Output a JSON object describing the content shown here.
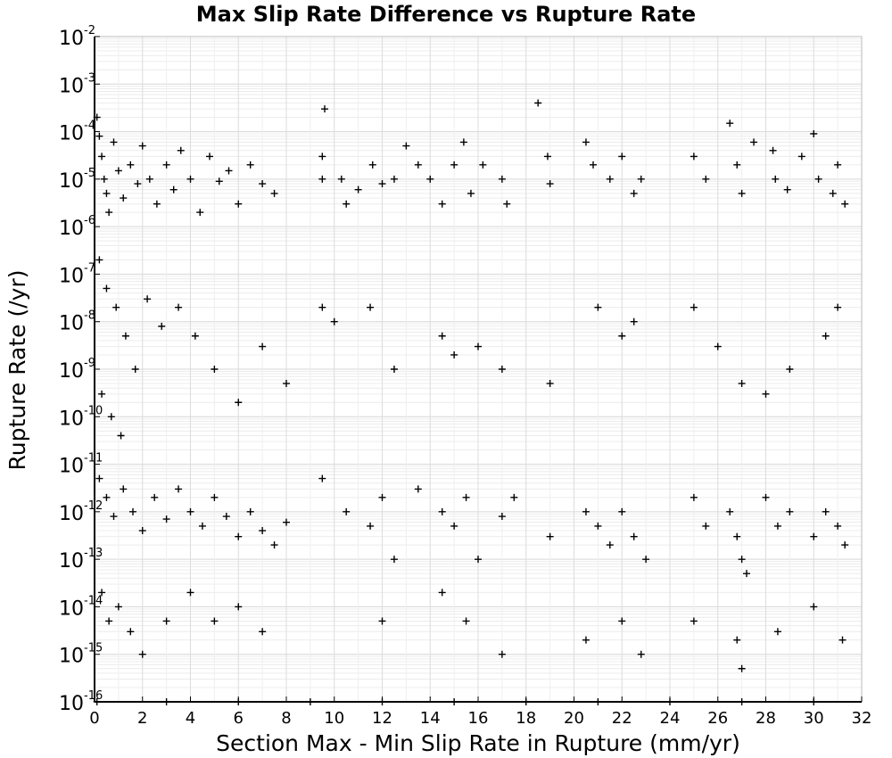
{
  "chart_data": {
    "type": "scatter",
    "title": "Max Slip Rate Difference vs Rupture Rate",
    "xlabel": "Section Max - Min Slip Rate in Rupture (mm/yr)",
    "ylabel": "Rupture Rate (/yr)",
    "xlim": [
      0,
      32
    ],
    "ylim": [
      1e-16,
      0.01
    ],
    "yscale": "log",
    "grid": true,
    "legend": "none",
    "marker": "+",
    "marker_color": "#000000",
    "x_ticks": [
      "0",
      "2",
      "4",
      "6",
      "8",
      "10",
      "12",
      "14",
      "16",
      "18",
      "20",
      "22",
      "24",
      "26",
      "28",
      "30",
      "32"
    ],
    "y_ticks": [
      {
        "base": "10",
        "exp": "-16"
      },
      {
        "base": "10",
        "exp": "-15"
      },
      {
        "base": "10",
        "exp": "-14"
      },
      {
        "base": "10",
        "exp": "-13"
      },
      {
        "base": "10",
        "exp": "-12"
      },
      {
        "base": "10",
        "exp": "-11"
      },
      {
        "base": "10",
        "exp": "-10"
      },
      {
        "base": "10",
        "exp": "-9"
      },
      {
        "base": "10",
        "exp": "-8"
      },
      {
        "base": "10",
        "exp": "-7"
      },
      {
        "base": "10",
        "exp": "-6"
      },
      {
        "base": "10",
        "exp": "-5"
      },
      {
        "base": "10",
        "exp": "-4"
      },
      {
        "base": "10",
        "exp": "-3"
      },
      {
        "base": "10",
        "exp": "-2"
      }
    ],
    "series": [
      {
        "points": [
          [
            0.1,
            0.0002
          ],
          [
            0.2,
            8e-05
          ],
          [
            0.3,
            3e-05
          ],
          [
            0.4,
            1e-05
          ],
          [
            0.5,
            5e-06
          ],
          [
            0.6,
            2e-06
          ],
          [
            0.8,
            6e-05
          ],
          [
            1.0,
            1.5e-05
          ],
          [
            1.2,
            4e-06
          ],
          [
            1.5,
            2e-05
          ],
          [
            1.8,
            8e-06
          ],
          [
            2.0,
            5e-05
          ],
          [
            2.3,
            1e-05
          ],
          [
            2.6,
            3e-06
          ],
          [
            3.0,
            2e-05
          ],
          [
            3.3,
            6e-06
          ],
          [
            3.6,
            4e-05
          ],
          [
            4.0,
            1e-05
          ],
          [
            4.4,
            2e-06
          ],
          [
            4.8,
            3e-05
          ],
          [
            5.2,
            9e-06
          ],
          [
            5.6,
            1.5e-05
          ],
          [
            6.0,
            3e-06
          ],
          [
            6.5,
            2e-05
          ],
          [
            7.0,
            8e-06
          ],
          [
            7.5,
            5e-06
          ],
          [
            0.2,
            2e-07
          ],
          [
            0.5,
            5e-08
          ],
          [
            0.9,
            2e-08
          ],
          [
            1.3,
            5e-09
          ],
          [
            1.7,
            1e-09
          ],
          [
            2.2,
            3e-08
          ],
          [
            2.8,
            8e-09
          ],
          [
            3.5,
            2e-08
          ],
          [
            4.2,
            5e-09
          ],
          [
            5.0,
            1e-09
          ],
          [
            6.0,
            2e-10
          ],
          [
            7.0,
            3e-09
          ],
          [
            8.0,
            5e-10
          ],
          [
            0.3,
            3e-10
          ],
          [
            0.7,
            1e-10
          ],
          [
            1.1,
            4e-11
          ],
          [
            9.5,
            3e-05
          ],
          [
            9.5,
            1e-05
          ],
          [
            9.6,
            0.0003
          ],
          [
            10.3,
            1e-05
          ],
          [
            10.5,
            3e-06
          ],
          [
            11.0,
            6e-06
          ],
          [
            11.6,
            2e-05
          ],
          [
            12.0,
            8e-06
          ],
          [
            12.5,
            1e-05
          ],
          [
            13.0,
            5e-05
          ],
          [
            13.5,
            2e-05
          ],
          [
            14.0,
            1e-05
          ],
          [
            14.5,
            3e-06
          ],
          [
            15.0,
            2e-05
          ],
          [
            15.4,
            6e-05
          ],
          [
            15.7,
            5e-06
          ],
          [
            16.2,
            2e-05
          ],
          [
            17.0,
            1e-05
          ],
          [
            17.2,
            3e-06
          ],
          [
            18.5,
            0.0004
          ],
          [
            18.9,
            3e-05
          ],
          [
            19.0,
            8e-06
          ],
          [
            20.5,
            6e-05
          ],
          [
            20.8,
            2e-05
          ],
          [
            21.5,
            1e-05
          ],
          [
            22.0,
            3e-05
          ],
          [
            22.5,
            5e-06
          ],
          [
            22.8,
            1e-05
          ],
          [
            25.0,
            3e-05
          ],
          [
            25.5,
            1e-05
          ],
          [
            26.5,
            0.00015
          ],
          [
            26.8,
            2e-05
          ],
          [
            27.0,
            5e-06
          ],
          [
            27.5,
            6e-05
          ],
          [
            28.3,
            4e-05
          ],
          [
            28.4,
            1e-05
          ],
          [
            28.9,
            6e-06
          ],
          [
            29.5,
            3e-05
          ],
          [
            30.0,
            9e-05
          ],
          [
            30.2,
            1e-05
          ],
          [
            30.8,
            5e-06
          ],
          [
            31.0,
            2e-05
          ],
          [
            31.3,
            3e-06
          ],
          [
            9.5,
            2e-08
          ],
          [
            10.0,
            1e-08
          ],
          [
            11.5,
            2e-08
          ],
          [
            12.5,
            1e-09
          ],
          [
            14.5,
            5e-09
          ],
          [
            15.0,
            2e-09
          ],
          [
            16.0,
            3e-09
          ],
          [
            17.0,
            1e-09
          ],
          [
            19.0,
            5e-10
          ],
          [
            21.0,
            2e-08
          ],
          [
            22.0,
            5e-09
          ],
          [
            22.5,
            1e-08
          ],
          [
            25.0,
            2e-08
          ],
          [
            26.0,
            3e-09
          ],
          [
            27.0,
            5e-10
          ],
          [
            28.0,
            3e-10
          ],
          [
            29.0,
            1e-09
          ],
          [
            30.5,
            5e-09
          ],
          [
            31.0,
            2e-08
          ],
          [
            0.2,
            5e-12
          ],
          [
            0.5,
            2e-12
          ],
          [
            0.8,
            8e-13
          ],
          [
            1.2,
            3e-12
          ],
          [
            1.6,
            1e-12
          ],
          [
            2.0,
            4e-13
          ],
          [
            2.5,
            2e-12
          ],
          [
            3.0,
            7e-13
          ],
          [
            3.5,
            3e-12
          ],
          [
            4.0,
            1e-12
          ],
          [
            4.5,
            5e-13
          ],
          [
            5.0,
            2e-12
          ],
          [
            5.5,
            8e-13
          ],
          [
            6.0,
            3e-13
          ],
          [
            6.5,
            1e-12
          ],
          [
            7.0,
            4e-13
          ],
          [
            7.5,
            2e-13
          ],
          [
            8.0,
            6e-13
          ],
          [
            0.3,
            2e-14
          ],
          [
            0.6,
            5e-15
          ],
          [
            1.0,
            1e-14
          ],
          [
            1.5,
            3e-15
          ],
          [
            2.0,
            1e-15
          ],
          [
            3.0,
            5e-15
          ],
          [
            4.0,
            2e-14
          ],
          [
            5.0,
            5e-15
          ],
          [
            6.0,
            1e-14
          ],
          [
            7.0,
            3e-15
          ],
          [
            9.5,
            5e-12
          ],
          [
            10.5,
            1e-12
          ],
          [
            11.5,
            5e-13
          ],
          [
            12.0,
            2e-12
          ],
          [
            12.5,
            1e-13
          ],
          [
            13.5,
            3e-12
          ],
          [
            14.5,
            1e-12
          ],
          [
            15.0,
            5e-13
          ],
          [
            15.5,
            2e-12
          ],
          [
            16.0,
            1e-13
          ],
          [
            17.0,
            8e-13
          ],
          [
            17.5,
            2e-12
          ],
          [
            19.0,
            3e-13
          ],
          [
            20.5,
            1e-12
          ],
          [
            21.0,
            5e-13
          ],
          [
            21.5,
            2e-13
          ],
          [
            22.0,
            1e-12
          ],
          [
            22.5,
            3e-13
          ],
          [
            23.0,
            1e-13
          ],
          [
            25.0,
            2e-12
          ],
          [
            25.5,
            5e-13
          ],
          [
            26.5,
            1e-12
          ],
          [
            26.8,
            3e-13
          ],
          [
            27.0,
            1e-13
          ],
          [
            27.2,
            5e-14
          ],
          [
            28.0,
            2e-12
          ],
          [
            28.5,
            5e-13
          ],
          [
            29.0,
            1e-12
          ],
          [
            30.0,
            3e-13
          ],
          [
            30.5,
            1e-12
          ],
          [
            31.0,
            5e-13
          ],
          [
            31.3,
            2e-13
          ],
          [
            12.0,
            5e-15
          ],
          [
            14.5,
            2e-14
          ],
          [
            15.5,
            5e-15
          ],
          [
            17.0,
            1e-15
          ],
          [
            20.5,
            2e-15
          ],
          [
            22.0,
            5e-15
          ],
          [
            22.8,
            1e-15
          ],
          [
            25.0,
            5e-15
          ],
          [
            26.8,
            2e-15
          ],
          [
            27.0,
            5e-16
          ],
          [
            28.5,
            3e-15
          ],
          [
            30.0,
            1e-14
          ],
          [
            31.2,
            2e-15
          ],
          [
            0.1,
            1e-16
          ],
          [
            3.0,
            1e-16
          ],
          [
            6.0,
            1e-16
          ],
          [
            9.0,
            1e-16
          ],
          [
            12.0,
            1e-16
          ],
          [
            15.0,
            1e-16
          ],
          [
            18.0,
            1e-16
          ],
          [
            21.0,
            1e-16
          ],
          [
            24.0,
            1e-16
          ],
          [
            27.0,
            1e-16
          ],
          [
            30.0,
            1e-16
          ]
        ]
      }
    ]
  }
}
